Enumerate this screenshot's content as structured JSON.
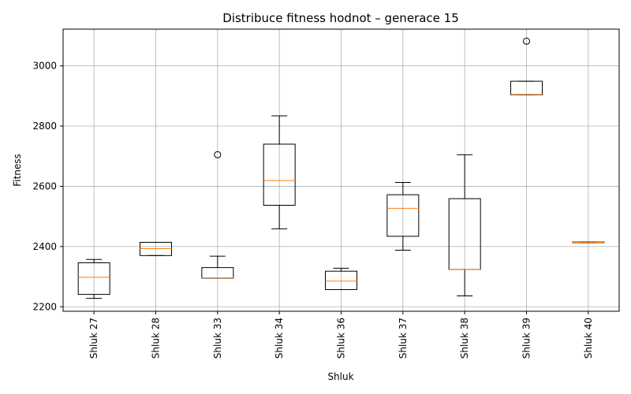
{
  "chart_data": {
    "type": "box",
    "title": "Distribuce fitness hodnot – generace 15",
    "xlabel": "Shluk",
    "ylabel": "Fitness",
    "ylim": [
      2185,
      3122
    ],
    "yticks": [
      2200,
      2400,
      2600,
      2800,
      3000
    ],
    "grid": true,
    "categories": [
      "Shluk 27",
      "Shluk 28",
      "Shluk 33",
      "Shluk 34",
      "Shluk 36",
      "Shluk 37",
      "Shluk 38",
      "Shluk 39",
      "Shluk 40"
    ],
    "boxes": [
      {
        "whislo": 2228,
        "q1": 2241,
        "med": 2298,
        "q3": 2346,
        "whishi": 2357,
        "fliers": []
      },
      {
        "whislo": 2370,
        "q1": 2370,
        "med": 2393,
        "q3": 2414,
        "whishi": 2414,
        "fliers": []
      },
      {
        "whislo": 2295,
        "q1": 2295,
        "med": 2296,
        "q3": 2330,
        "whishi": 2368,
        "fliers": [
          2705
        ]
      },
      {
        "whislo": 2459,
        "q1": 2537,
        "med": 2619,
        "q3": 2740,
        "whishi": 2834,
        "fliers": []
      },
      {
        "whislo": 2257,
        "q1": 2257,
        "med": 2285,
        "q3": 2318,
        "whishi": 2328,
        "fliers": []
      },
      {
        "whislo": 2388,
        "q1": 2434,
        "med": 2527,
        "q3": 2572,
        "whishi": 2613,
        "fliers": []
      },
      {
        "whislo": 2236,
        "q1": 2324,
        "med": 2324,
        "q3": 2559,
        "whishi": 2705,
        "fliers": []
      },
      {
        "whislo": 2904,
        "q1": 2904,
        "med": 2905,
        "q3": 2949,
        "whishi": 2949,
        "fliers": [
          3082
        ]
      },
      {
        "whislo": 2413,
        "q1": 2413,
        "med": 2414,
        "q3": 2415,
        "whishi": 2415,
        "fliers": []
      }
    ],
    "colors": {
      "box": "#000000",
      "median": "#ff7f0e",
      "grid": "#b0b0b0"
    }
  }
}
